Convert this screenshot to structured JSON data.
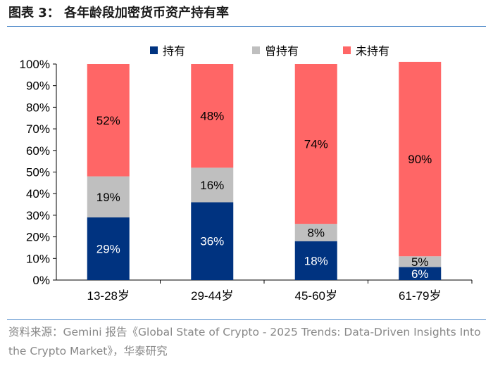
{
  "title": "图表 3：   各年龄段加密货币资产持有率",
  "source": "资料来源：Gemini 报告《Global State of Crypto - 2025 Trends: Data-Driven Insights Into the Crypto Market》，华泰研究",
  "chart_data": {
    "type": "bar",
    "stacked": true,
    "categories": [
      "13-28岁",
      "29-44岁",
      "45-60岁",
      "61-79岁"
    ],
    "series": [
      {
        "name": "持有",
        "color": "#003380",
        "values": [
          29,
          36,
          18,
          6
        ]
      },
      {
        "name": "曾持有",
        "color": "#bfbfbf",
        "values": [
          19,
          16,
          8,
          5
        ]
      },
      {
        "name": "未持有",
        "color": "#ff6666",
        "values": [
          52,
          48,
          74,
          90
        ]
      }
    ],
    "ylim": [
      0,
      100
    ],
    "yticks": [
      "0%",
      "10%",
      "20%",
      "30%",
      "40%",
      "50%",
      "60%",
      "70%",
      "80%",
      "90%",
      "100%"
    ],
    "legend": "top",
    "grid": false,
    "xlabel": "",
    "ylabel": ""
  }
}
